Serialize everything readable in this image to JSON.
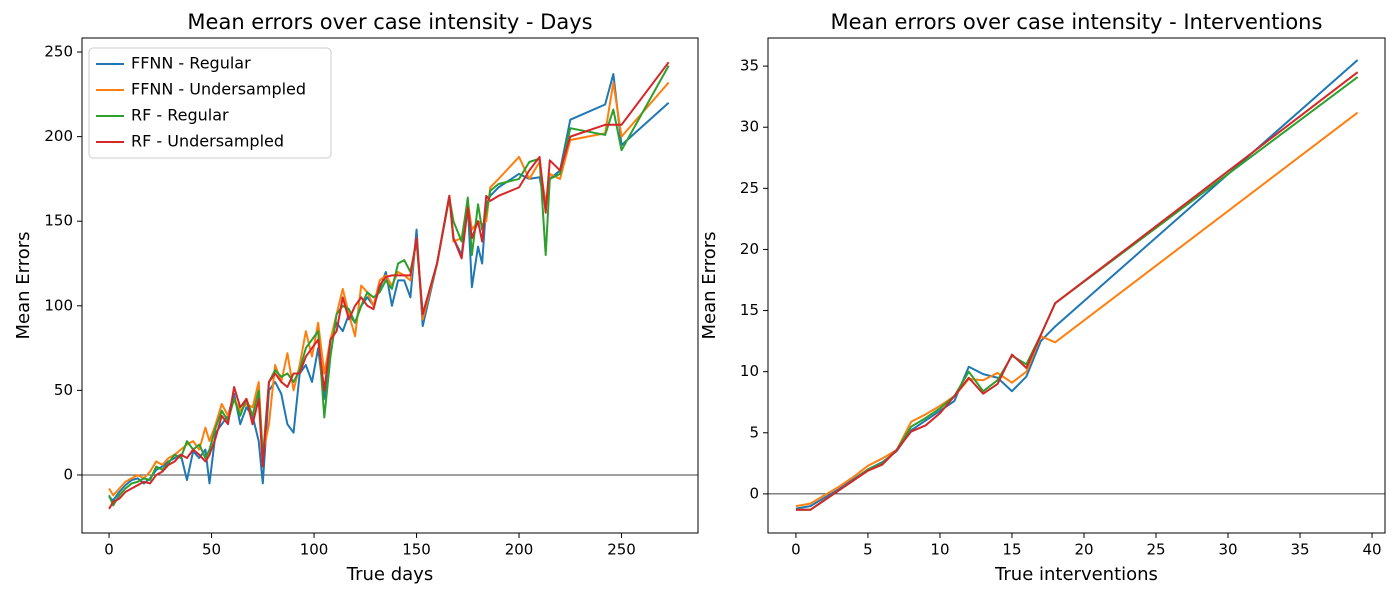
{
  "chart_data": [
    {
      "type": "line",
      "title": "Mean errors over case intensity - Days",
      "xlabel": "True days",
      "ylabel": "Mean Errors",
      "x": [
        0,
        2,
        5,
        8,
        11,
        14,
        17,
        20,
        23,
        26,
        29,
        32,
        35,
        38,
        41,
        44,
        47,
        49,
        52,
        55,
        58,
        61,
        64,
        67,
        70,
        73,
        75,
        78,
        81,
        84,
        87,
        90,
        93,
        96,
        99,
        102,
        105,
        108,
        111,
        114,
        117,
        120,
        123,
        126,
        129,
        132,
        135,
        138,
        141,
        144,
        147,
        150,
        153,
        160,
        166,
        168,
        172,
        175,
        177,
        180,
        182,
        184,
        186,
        190,
        200,
        205,
        210,
        213,
        215,
        220,
        225,
        242,
        246,
        250,
        273
      ],
      "series": [
        {
          "name": "FFNN - Regular",
          "color": "#1f77b4",
          "values": [
            -13,
            -15,
            -10,
            -6,
            -3,
            -2,
            -5,
            -2,
            3,
            5,
            8,
            10,
            12,
            -3,
            14,
            10,
            15,
            -5,
            25,
            30,
            35,
            48,
            30,
            40,
            35,
            20,
            -5,
            50,
            55,
            48,
            30,
            25,
            60,
            65,
            55,
            75,
            45,
            80,
            90,
            85,
            95,
            90,
            100,
            105,
            100,
            110,
            120,
            100,
            115,
            115,
            105,
            145,
            88,
            125,
            165,
            140,
            130,
            160,
            111,
            135,
            125,
            160,
            165,
            170,
            178,
            175,
            176,
            158,
            175,
            180,
            210,
            219,
            237,
            195,
            220
          ]
        },
        {
          "name": "FFNN - Undersampled",
          "color": "#ff7f0e",
          "values": [
            -8,
            -12,
            -8,
            -4,
            -2,
            0,
            -2,
            2,
            8,
            6,
            10,
            12,
            15,
            18,
            20,
            15,
            28,
            20,
            30,
            42,
            35,
            45,
            38,
            42,
            40,
            55,
            12,
            30,
            65,
            55,
            72,
            50,
            65,
            85,
            70,
            90,
            60,
            80,
            95,
            110,
            95,
            82,
            112,
            108,
            100,
            115,
            118,
            112,
            120,
            118,
            115,
            140,
            92,
            125,
            165,
            138,
            140,
            162,
            145,
            150,
            148,
            150,
            170,
            175,
            188,
            175,
            185,
            160,
            178,
            175,
            198,
            202,
            232,
            200,
            232
          ]
        },
        {
          "name": "RF - Regular",
          "color": "#2ca02c",
          "values": [
            -12,
            -18,
            -12,
            -8,
            -5,
            -4,
            -2,
            -3,
            5,
            3,
            7,
            12,
            10,
            20,
            15,
            18,
            10,
            15,
            28,
            38,
            32,
            45,
            35,
            45,
            35,
            50,
            10,
            55,
            62,
            58,
            60,
            55,
            62,
            75,
            80,
            85,
            34,
            70,
            95,
            100,
            98,
            90,
            100,
            108,
            105,
            108,
            115,
            110,
            125,
            127,
            120,
            138,
            95,
            125,
            164,
            150,
            138,
            164,
            130,
            160,
            145,
            155,
            168,
            172,
            175,
            185,
            187,
            130,
            175,
            178,
            205,
            201,
            216,
            192,
            242
          ]
        },
        {
          "name": "RF - Undersampled",
          "color": "#d62728",
          "values": [
            -20,
            -16,
            -14,
            -10,
            -8,
            -6,
            -4,
            -5,
            0,
            2,
            6,
            8,
            12,
            10,
            15,
            12,
            8,
            12,
            22,
            35,
            30,
            52,
            40,
            45,
            30,
            45,
            5,
            55,
            60,
            55,
            52,
            60,
            60,
            70,
            75,
            80,
            50,
            80,
            85,
            105,
            92,
            100,
            105,
            100,
            98,
            112,
            117,
            118,
            118,
            118,
            118,
            140,
            95,
            125,
            165,
            140,
            128,
            158,
            140,
            150,
            138,
            165,
            162,
            165,
            170,
            180,
            188,
            155,
            186,
            180,
            200,
            207,
            207,
            207,
            244
          ]
        }
      ],
      "xlim": [
        -13.2,
        287.3
      ],
      "ylim": [
        -34.3,
        258.3
      ],
      "xticks": [
        0,
        50,
        100,
        150,
        200,
        250
      ],
      "yticks": [
        0,
        50,
        100,
        150,
        200,
        250
      ],
      "reference_line": 0,
      "legend": "upper left"
    },
    {
      "type": "line",
      "title": "Mean errors over case intensity - Interventions",
      "xlabel": "True interventions",
      "ylabel": "Mean Errors",
      "x": [
        0,
        1,
        2,
        3,
        4,
        5,
        6,
        7,
        8,
        9,
        10,
        11,
        12,
        13,
        14,
        15,
        16,
        17,
        18,
        39
      ],
      "series": [
        {
          "color": "#1f77b4",
          "values": [
            -1.2,
            -1.0,
            -0.3,
            0.4,
            1.2,
            2.0,
            2.6,
            3.5,
            5.2,
            6.0,
            6.8,
            7.6,
            10.4,
            9.8,
            9.5,
            8.4,
            9.6,
            12.5,
            13.7,
            35.5
          ]
        },
        {
          "color": "#ff7f0e",
          "values": [
            -1.0,
            -0.8,
            -0.1,
            0.6,
            1.4,
            2.3,
            2.9,
            3.6,
            5.9,
            6.5,
            7.2,
            8.0,
            9.4,
            9.3,
            9.9,
            9.1,
            10.0,
            12.9,
            12.4,
            31.2
          ]
        },
        {
          "color": "#2ca02c",
          "values": [
            -1.3,
            -1.3,
            -0.5,
            0.3,
            1.1,
            2.0,
            2.5,
            3.6,
            5.5,
            6.2,
            7.0,
            8.0,
            10.0,
            8.4,
            9.3,
            11.3,
            10.6,
            13.0,
            15.6,
            34.1
          ]
        },
        {
          "color": "#d62728",
          "values": [
            -1.3,
            -1.3,
            -0.5,
            0.3,
            1.1,
            1.9,
            2.4,
            3.6,
            5.1,
            5.6,
            6.6,
            8.0,
            9.5,
            8.2,
            9.0,
            11.4,
            10.3,
            13.0,
            15.6,
            34.5
          ]
        }
      ],
      "xlim": [
        -1.94,
        40.9
      ],
      "ylim": [
        -3.2,
        37.3
      ],
      "xticks": [
        0,
        5,
        10,
        15,
        20,
        25,
        30,
        35,
        40
      ],
      "yticks": [
        0,
        5,
        10,
        15,
        20,
        25,
        30,
        35
      ],
      "reference_line": 0
    }
  ]
}
